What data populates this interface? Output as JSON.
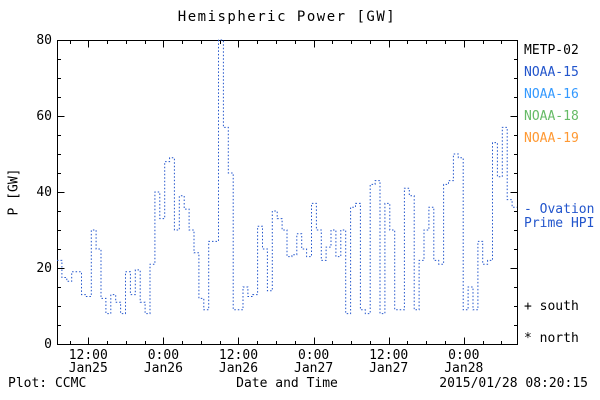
{
  "title": "Hemispheric Power [GW]",
  "ylabel": "P [GW]",
  "xlabel": "Date and Time",
  "footer": {
    "left": "Plot: CCMC",
    "right": "2015/01/28 08:20:15"
  },
  "legend": [
    {
      "label": "METP-02",
      "color": "#000000"
    },
    {
      "label": "NOAA-15",
      "color": "#2255cc"
    },
    {
      "label": "NOAA-16",
      "color": "#3399ff"
    },
    {
      "label": "NOAA-18",
      "color": "#66bb66"
    },
    {
      "label": "NOAA-19",
      "color": "#ff9933"
    }
  ],
  "ovation_note": {
    "line1": "- Ovation",
    "line2": "Prime HPI",
    "color": "#2255cc"
  },
  "marker_notes": [
    {
      "label": "+ south"
    },
    {
      "label": "* north"
    }
  ],
  "chart_data": {
    "type": "line",
    "style": "dotted-step",
    "line_color": "#2255cc",
    "title": "Hemispheric Power [GW]",
    "xlabel": "Date and Time",
    "ylabel": "P [GW]",
    "ylim": [
      0,
      80
    ],
    "yticks": [
      0,
      20,
      40,
      60,
      80
    ],
    "y_minor_step": 5,
    "x_minor_step_hours": 3,
    "grid": false,
    "legend_position": "right-outside",
    "x_range_hours": [
      0,
      73.5
    ],
    "x_note": "hours from ~07:00 Jan25 to ~08:30 Jan28; values are evenly spaced step estimates",
    "xticks": [
      {
        "t": 5,
        "time": "12:00",
        "date": "Jan25"
      },
      {
        "t": 17,
        "time": "0:00",
        "date": "Jan26"
      },
      {
        "t": 29,
        "time": "12:00",
        "date": "Jan26"
      },
      {
        "t": 41,
        "time": "0:00",
        "date": "Jan27"
      },
      {
        "t": 53,
        "time": "12:00",
        "date": "Jan27"
      },
      {
        "t": 65,
        "time": "0:00",
        "date": "Jan28"
      }
    ],
    "values": [
      22,
      17.5,
      16.5,
      19,
      19,
      13,
      12.5,
      30,
      25,
      12,
      8,
      13,
      11,
      8,
      19,
      13,
      19.5,
      11,
      8,
      21,
      40,
      33,
      48,
      49,
      30,
      39,
      35.5,
      30,
      24,
      12,
      9,
      27,
      27,
      80,
      57,
      45,
      9,
      9,
      15,
      12.5,
      13,
      31,
      25,
      14,
      35,
      33,
      30,
      23,
      23.5,
      29,
      25,
      23,
      37,
      30,
      22,
      25.5,
      30,
      23,
      30,
      8,
      36,
      37,
      9,
      8,
      42,
      43,
      8,
      37,
      30,
      9,
      9,
      41,
      39,
      9,
      22,
      30,
      36,
      22,
      21,
      42,
      43,
      50,
      49,
      9,
      15,
      9,
      27,
      21,
      22,
      53,
      44,
      57,
      38,
      36
    ]
  }
}
